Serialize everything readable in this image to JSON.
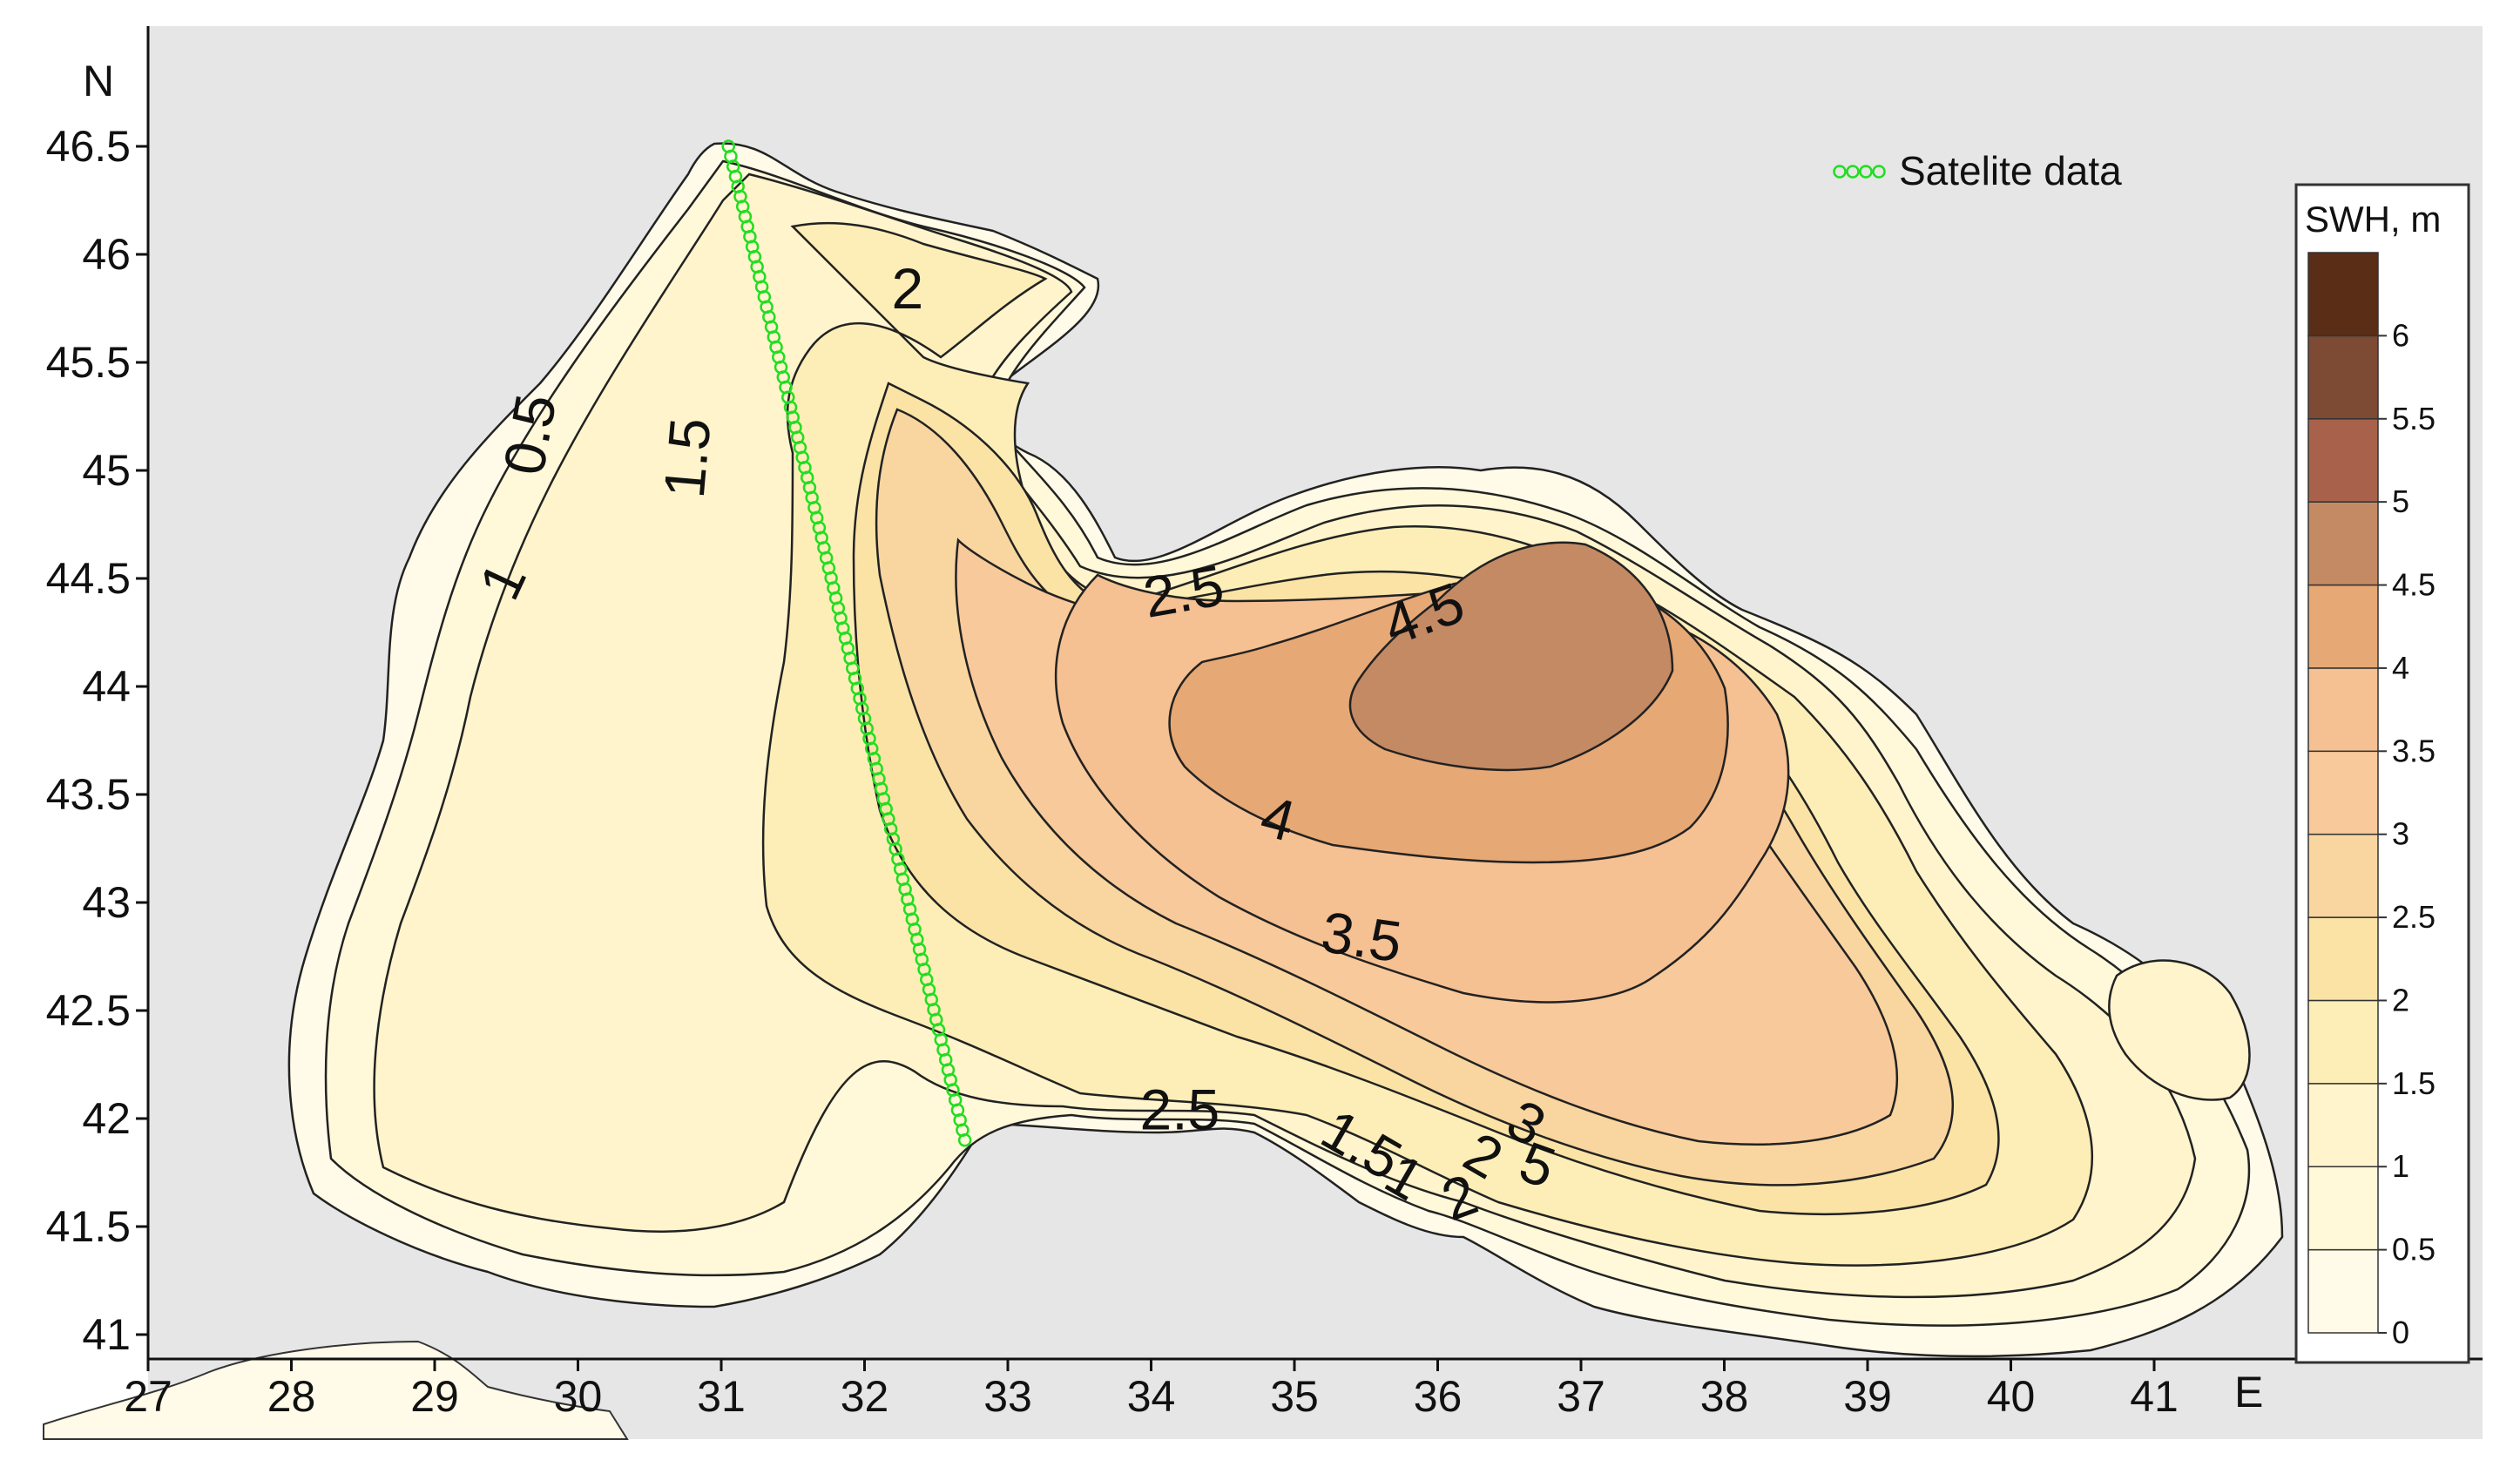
{
  "axes": {
    "north_label": "N",
    "east_label": "E",
    "x_ticks": [
      "27",
      "28",
      "29",
      "30",
      "31",
      "32",
      "33",
      "34",
      "35",
      "36",
      "37",
      "38",
      "39",
      "40",
      "41"
    ],
    "y_ticks": [
      "46.5",
      "46",
      "45.5",
      "45",
      "44.5",
      "44",
      "43.5",
      "43",
      "42.5",
      "42",
      "41.5",
      "41"
    ],
    "x_range": [
      27,
      42.3
    ],
    "y_range": [
      40.95,
      46.85
    ]
  },
  "legend": {
    "marker_label": "Satelite data",
    "marker_color": "#22dd22"
  },
  "colorbar": {
    "title": "SWH, m",
    "levels": [
      "0",
      "0.5",
      "1",
      "1.5",
      "2",
      "2.5",
      "3",
      "3.5",
      "4",
      "4.5",
      "5",
      "5.5",
      "6"
    ],
    "colors": [
      "#fffbe8",
      "#fff8d9",
      "#fff4cb",
      "#fdeeb7",
      "#fbe3a6",
      "#f9d5a0",
      "#f8c99a",
      "#f5c092",
      "#e6a874",
      "#c48a64",
      "#a8614a",
      "#7d4a34",
      "#5a2d17"
    ]
  },
  "contour_labels": [
    {
      "text": "0.5",
      "lon": 29.8,
      "lat": 45.15,
      "rot": -80
    },
    {
      "text": "1",
      "lon": 29.6,
      "lat": 44.45,
      "rot": -65
    },
    {
      "text": "1.5",
      "lon": 30.9,
      "lat": 45.05,
      "rot": -85
    },
    {
      "text": "2",
      "lon": 32.3,
      "lat": 45.75,
      "rot": 0
    },
    {
      "text": "2.5",
      "lon": 34.25,
      "lat": 44.35,
      "rot": -10
    },
    {
      "text": "4.5",
      "lon": 35.95,
      "lat": 44.25,
      "rot": -20
    },
    {
      "text": "4",
      "lon": 34.85,
      "lat": 43.3,
      "rot": 15
    },
    {
      "text": "3.5",
      "lon": 35.45,
      "lat": 42.75,
      "rot": 8
    },
    {
      "text": "2.5",
      "lon": 34.2,
      "lat": 41.95,
      "rot": 0
    },
    {
      "text": "1.5",
      "lon": 35.4,
      "lat": 41.8,
      "rot": 30
    },
    {
      "text": "1",
      "lon": 35.7,
      "lat": 41.65,
      "rot": 30
    },
    {
      "text": "2",
      "lon": 36.2,
      "lat": 41.55,
      "rot": -20
    },
    {
      "text": "2",
      "lon": 36.25,
      "lat": 41.75,
      "rot": 30
    },
    {
      "text": "3",
      "lon": 36.55,
      "lat": 41.9,
      "rot": 30
    },
    {
      "text": "5",
      "lon": 36.65,
      "lat": 41.7,
      "rot": 20
    }
  ],
  "satellite_track": {
    "start": [
      31.05,
      46.5
    ],
    "end": [
      32.7,
      41.9
    ],
    "count": 100
  }
}
